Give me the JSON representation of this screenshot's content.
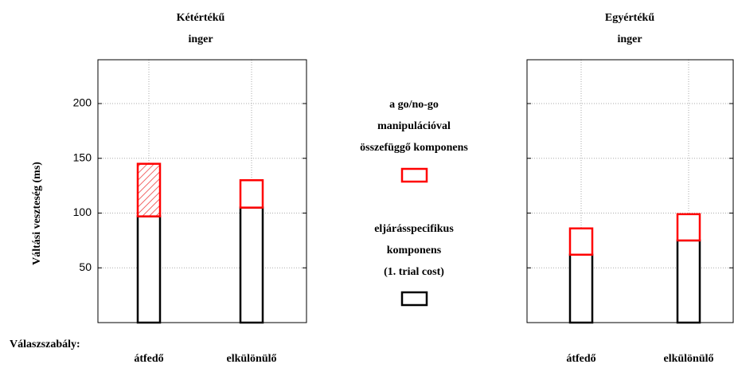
{
  "chart_data": [
    {
      "type": "bar",
      "stacked": true,
      "title": "Kétértékű\ninger",
      "ylabel": "Váltási veszteség (ms)",
      "xlabel": "Válaszszabály:",
      "categories": [
        "átfedő",
        "elkülönülő"
      ],
      "series": [
        {
          "name": "eljárásspecifikus\nkomponens\n(1. trial cost)",
          "color": "#000000",
          "values": [
            97,
            105
          ]
        },
        {
          "name": "a go/no-go\nmanipulációval\nösszefüggő komponens",
          "color": "#ff0000",
          "values": [
            48,
            25
          ],
          "hatch": [
            true,
            false
          ]
        }
      ],
      "ylim": [
        0,
        240
      ],
      "yticks": [
        50,
        100,
        150,
        200
      ],
      "show_ytick_labels": true,
      "grid": true
    },
    {
      "type": "bar",
      "stacked": true,
      "title": "Egyértékű\ninger",
      "categories": [
        "átfedő",
        "elkülönülő"
      ],
      "series": [
        {
          "color": "#000000",
          "values": [
            62,
            75
          ]
        },
        {
          "color": "#ff0000",
          "values": [
            24,
            24
          ],
          "hatch": [
            false,
            false
          ]
        }
      ],
      "ylim": [
        0,
        240
      ],
      "yticks": [
        50,
        100,
        150,
        200
      ],
      "show_ytick_labels": false,
      "grid": true
    }
  ]
}
